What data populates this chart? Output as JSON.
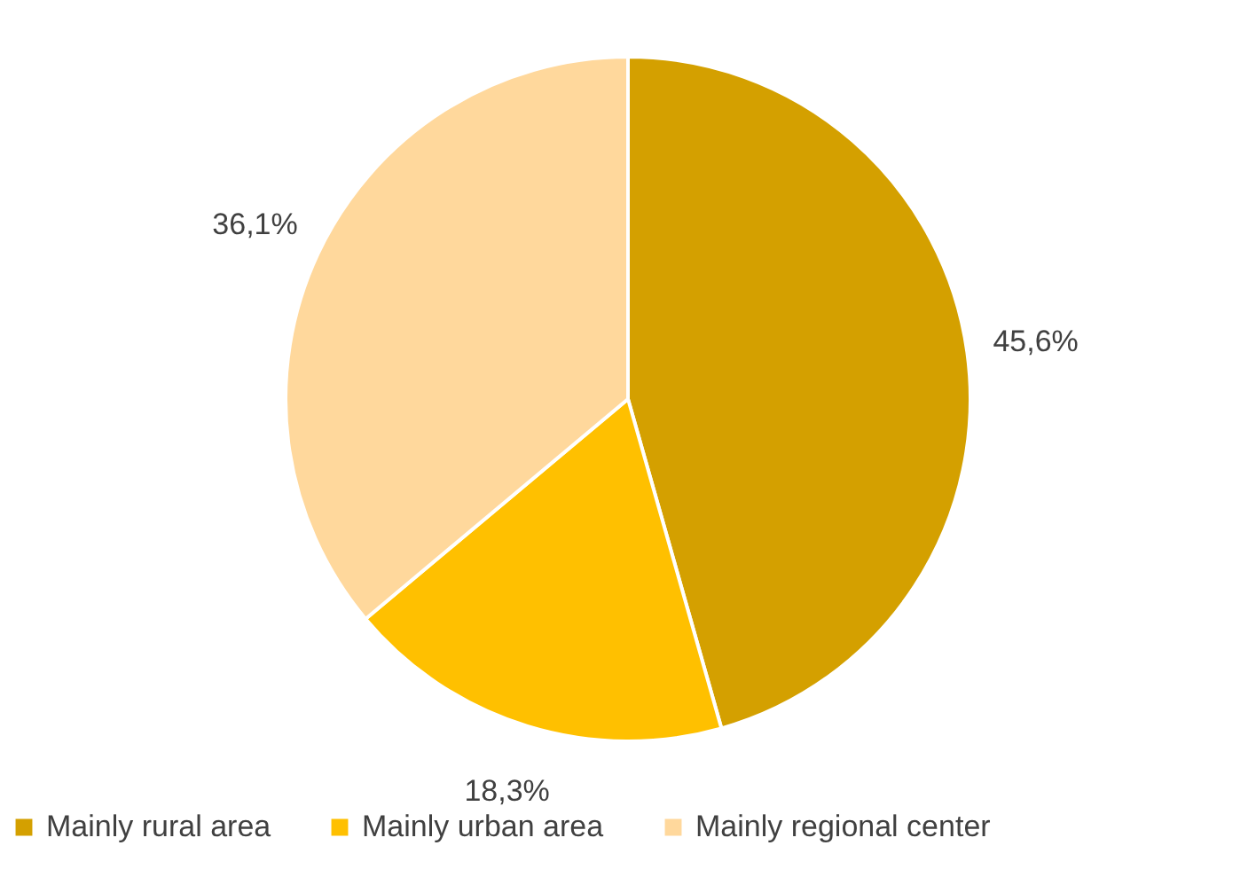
{
  "chart_data": {
    "type": "pie",
    "categories": [
      "Mainly rural area",
      "Mainly urban area",
      "Mainly regional center"
    ],
    "values": [
      45.6,
      18.3,
      36.1
    ],
    "colors": [
      "#d4a000",
      "#ffc000",
      "#ffd89c"
    ],
    "value_labels": [
      "45,6%",
      "18,3%",
      "36,1%"
    ],
    "legend": "bottom"
  }
}
